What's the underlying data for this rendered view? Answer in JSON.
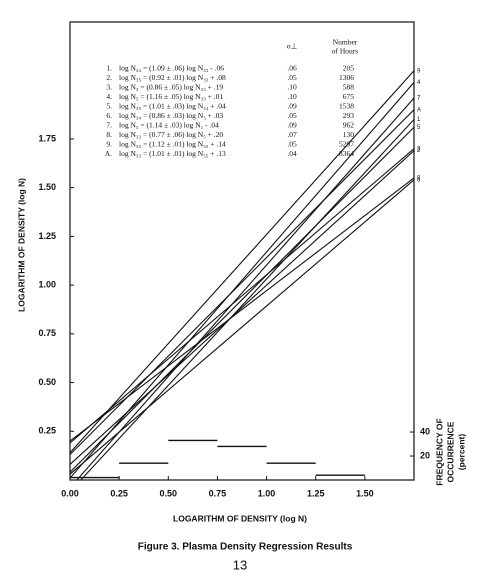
{
  "chart_data": [
    {
      "type": "line",
      "xlabel": "LOGARITHM OF DENSITY (log N)",
      "ylabel": "LOGARITHM OF DENSITY (log N)",
      "x": [
        0,
        1.75
      ],
      "xlim": [
        0,
        1.75
      ],
      "ylim": [
        0,
        2.35
      ],
      "xticks": [
        {
          "value": 0,
          "label": "0.00"
        },
        {
          "value": 0.25,
          "label": "0.25"
        },
        {
          "value": 0.5,
          "label": "0.50"
        },
        {
          "value": 0.75,
          "label": "0.75"
        },
        {
          "value": 1,
          "label": "1.00"
        },
        {
          "value": 1.25,
          "label": "1.25"
        },
        {
          "value": 1.5,
          "label": "1.50"
        }
      ],
      "yticks": [
        {
          "value": 0.25,
          "label": "0.25"
        },
        {
          "value": 0.5,
          "label": "0.50"
        },
        {
          "value": 0.75,
          "label": "0.75"
        },
        {
          "value": 1,
          "label": "1.00"
        },
        {
          "value": 1.25,
          "label": "1.25"
        },
        {
          "value": 1.5,
          "label": "1.50"
        },
        {
          "value": 1.75,
          "label": "1.75"
        }
      ],
      "color": "#111111",
      "series": [
        {
          "name": "1",
          "values": [
            -0.06,
            1.85
          ]
        },
        {
          "name": "2",
          "values": [
            0.08,
            1.69
          ]
        },
        {
          "name": "3",
          "values": [
            0.19,
            1.7
          ]
        },
        {
          "name": "4",
          "values": [
            0.01,
            2.04
          ]
        },
        {
          "name": "5",
          "values": [
            0.04,
            1.81
          ]
        },
        {
          "name": "6",
          "values": [
            0.03,
            1.54
          ]
        },
        {
          "name": "7",
          "values": [
            -0.04,
            1.96
          ]
        },
        {
          "name": "8",
          "values": [
            0.2,
            1.55
          ]
        },
        {
          "name": "9",
          "values": [
            0.14,
            2.1
          ]
        },
        {
          "name": "A",
          "values": [
            0.13,
            1.9
          ]
        }
      ],
      "table": {
        "sigma_header": "σ⊥",
        "hours_header": [
          "Number",
          "of Hours"
        ],
        "rows": [
          [
            "1.",
            "log N₃₄ = (1.09 ± .06) log N₃₃ - .06",
            ".06",
            "205"
          ],
          [
            "2.",
            "log N₃₅ = (0.92 ± .01) log N₃₃ + .08",
            ".05",
            "1306"
          ],
          [
            "3.",
            "log N₃ = (0.86 ± .05) log N₃₃ + .19",
            ".10",
            "588"
          ],
          [
            "4.",
            "log N₅ = (1.16 ± .05) log N₃₃ + .01",
            ".10",
            "675"
          ],
          [
            "5.",
            "log N₃₅ = (1.01 ± .03) log N₃₄ + .04",
            ".09",
            "1538"
          ],
          [
            "6.",
            "log N₃₄ = (0.86 ± .03) log N₅ + .03",
            ".05",
            "293"
          ],
          [
            "7.",
            "log N₅ = (1.14 ± .03) log N₁ - .04",
            ".09",
            "962"
          ],
          [
            "8.",
            "log N₃₃ = (0.77 ± .06) log N₅ + .20",
            ".07",
            "130"
          ],
          [
            "9.",
            "log N₅₅ = (1.12 ± .01) log N₅₅ + .14",
            ".05",
            "5297"
          ],
          [
            "A.",
            "log N₃₃ = (1.01 ± .01) log N₅₅ + .13",
            ".04",
            "8364"
          ]
        ]
      }
    },
    {
      "type": "histogram",
      "y2label": [
        "FREQUENCY OF",
        "OCCURRENCE",
        "(percent)"
      ],
      "bins": [
        0,
        0.25,
        0.5,
        0.75,
        1,
        1.25,
        1.5
      ],
      "values": [
        2,
        14,
        33,
        28,
        14,
        4
      ],
      "y2lim": [
        0,
        382
      ],
      "y2ticks": [
        20,
        40
      ],
      "color": "#111111"
    }
  ],
  "caption": "Figure 3.  Plasma Density Regression Results",
  "page_number": "13"
}
